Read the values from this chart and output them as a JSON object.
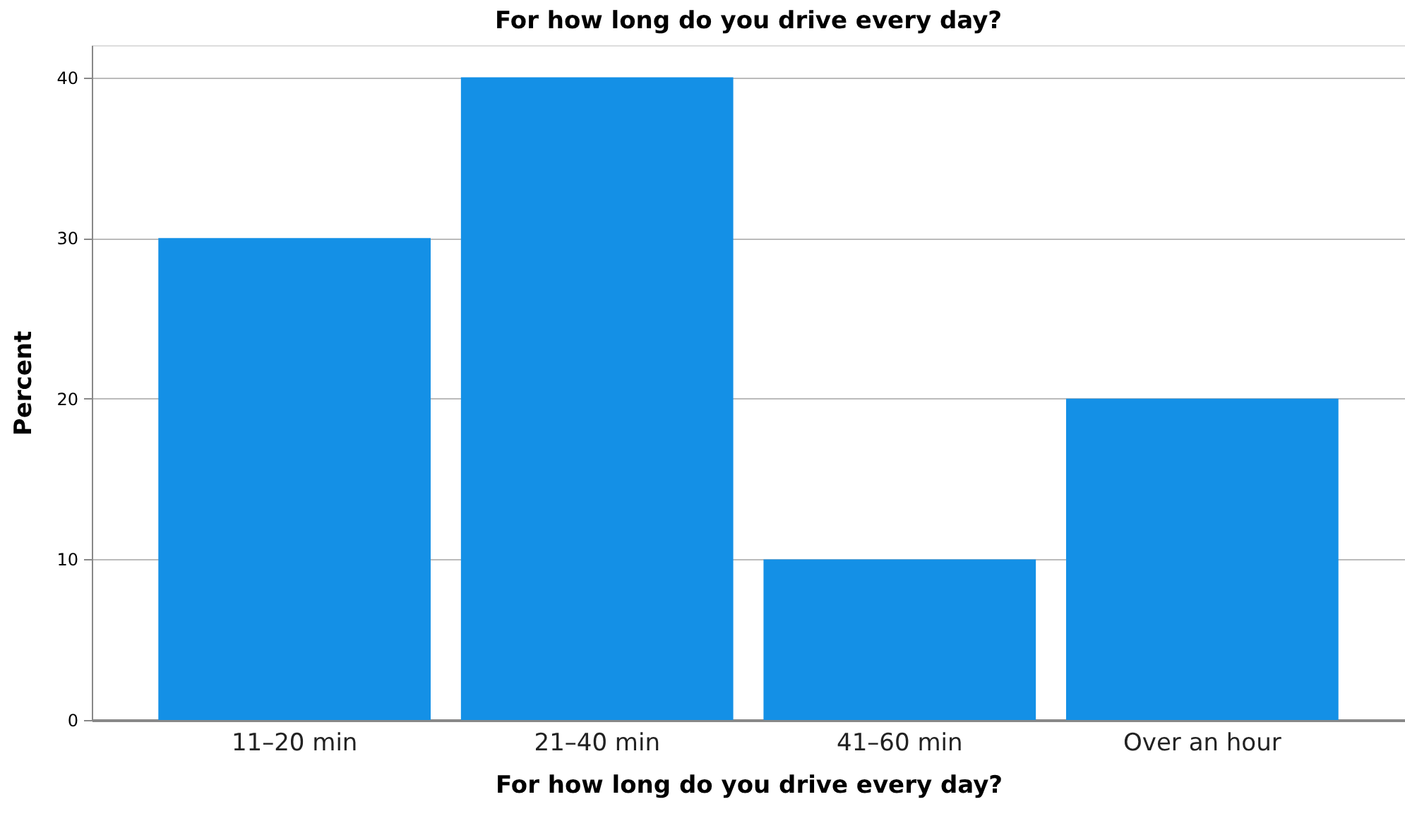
{
  "chart_data": {
    "type": "bar",
    "title": "For how long do you drive every day?",
    "xlabel": "For how long do you drive every day?",
    "ylabel": "Percent",
    "categories": [
      "11–20 min",
      "21–40 min",
      "41–60 min",
      "Over an hour"
    ],
    "values": [
      30,
      40,
      10,
      20
    ],
    "color": "#1490e6",
    "ylim": [
      0,
      42
    ],
    "yticks": [
      0,
      10,
      20,
      30,
      40
    ],
    "grid": "y"
  }
}
